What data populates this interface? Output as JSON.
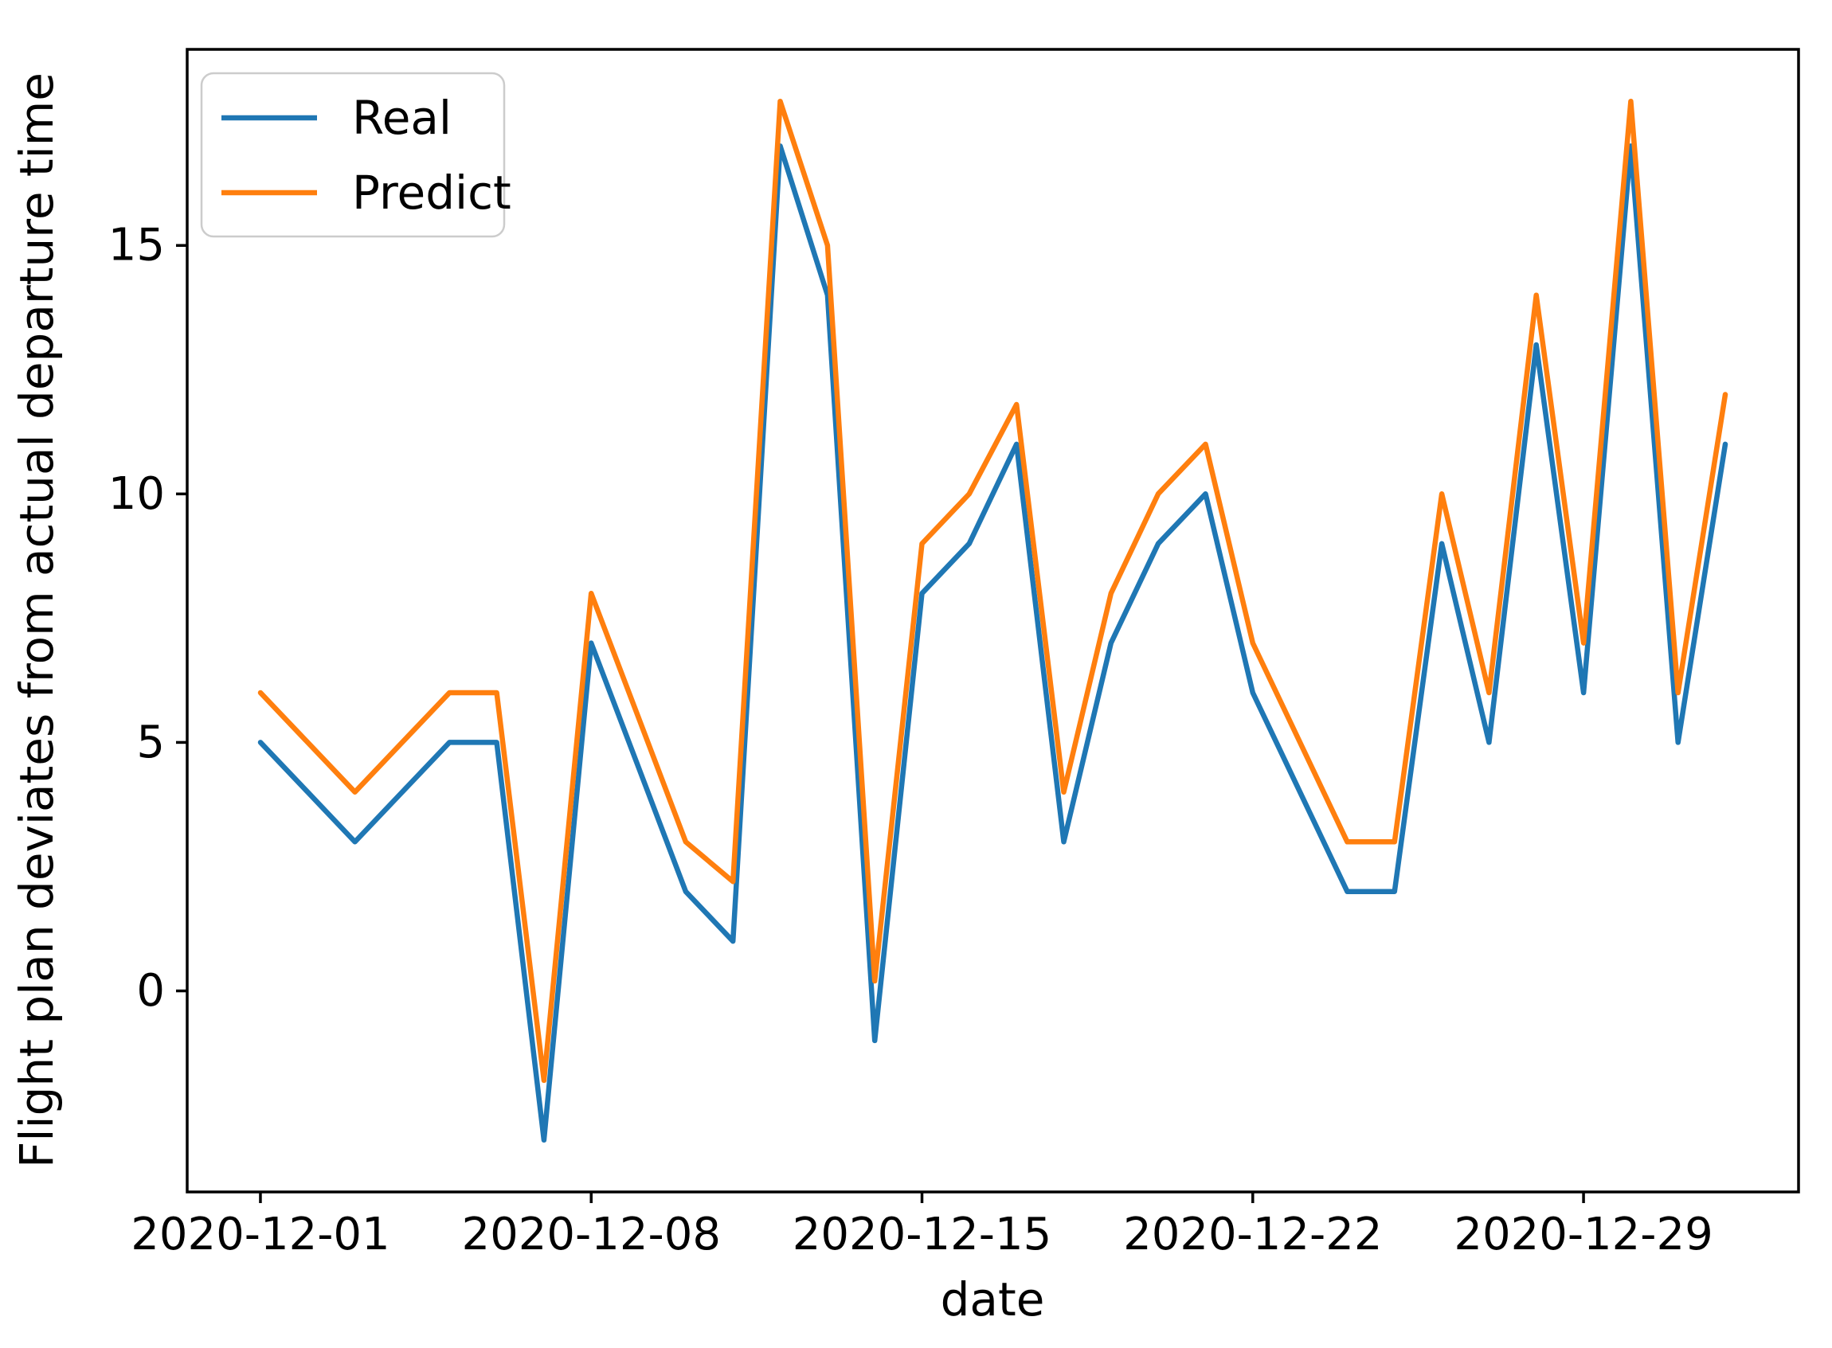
{
  "chart_data": {
    "type": "line",
    "title": "",
    "xlabel": "date",
    "ylabel": "Flight plan deviates from actual departure time",
    "legend_position": "upper-left",
    "grid": false,
    "x": [
      "2020-12-01",
      "2020-12-02",
      "2020-12-03",
      "2020-12-04",
      "2020-12-05",
      "2020-12-06",
      "2020-12-07",
      "2020-12-08",
      "2020-12-09",
      "2020-12-10",
      "2020-12-11",
      "2020-12-12",
      "2020-12-13",
      "2020-12-14",
      "2020-12-15",
      "2020-12-16",
      "2020-12-17",
      "2020-12-18",
      "2020-12-19",
      "2020-12-20",
      "2020-12-21",
      "2020-12-22",
      "2020-12-23",
      "2020-12-24",
      "2020-12-25",
      "2020-12-26",
      "2020-12-27",
      "2020-12-28",
      "2020-12-29",
      "2020-12-30",
      "2020-12-31",
      "2021-01-01"
    ],
    "x_tick_labels": [
      "2020-12-01",
      "2020-12-08",
      "2020-12-15",
      "2020-12-22",
      "2020-12-29"
    ],
    "x_tick_indices": [
      0,
      7,
      14,
      21,
      28
    ],
    "y_ticks": [
      0,
      5,
      10,
      15
    ],
    "ylim": [
      -4.045,
      18.945
    ],
    "series": [
      {
        "name": "Real",
        "color": "#1f77b4",
        "values": [
          5,
          4,
          3,
          4,
          5,
          5,
          -3,
          7,
          4.5,
          2,
          1,
          17,
          14,
          -1,
          8,
          9,
          11,
          3,
          7,
          9,
          10,
          6,
          4,
          2,
          2,
          9,
          5,
          13,
          6,
          17,
          5,
          11
        ]
      },
      {
        "name": "Predict",
        "color": "#ff7f0e",
        "values": [
          6,
          5,
          4,
          5,
          6,
          6,
          -1.8,
          8,
          5.5,
          3,
          2.2,
          17.9,
          15,
          0.2,
          9,
          10,
          11.8,
          4,
          8,
          10,
          11,
          7,
          5,
          3,
          3,
          10,
          6,
          14,
          7,
          17.9,
          6,
          12
        ]
      }
    ]
  },
  "legend": {
    "real_label": "Real",
    "predict_label": "Predict"
  },
  "axes": {
    "xlabel": "date",
    "ylabel": "Flight plan deviates from actual departure time"
  }
}
